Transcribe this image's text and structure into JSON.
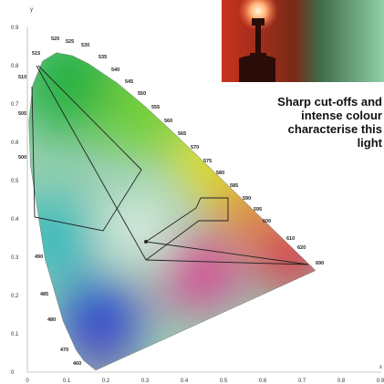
{
  "axis": {
    "x_label": "x",
    "y_label": "y",
    "x_ticks": [
      "0",
      "0.1",
      "0.2",
      "0.3",
      "0.4",
      "0.5",
      "0.6",
      "0.7",
      "0.8",
      "0.9"
    ],
    "y_ticks": [
      "0",
      "0.1",
      "0.2",
      "0.3",
      "0.4",
      "0.5",
      "0.6",
      "0.7",
      "0.8",
      "0.9"
    ]
  },
  "wavelengths": [
    "515",
    "520",
    "525",
    "530",
    "535",
    "540",
    "545",
    "550",
    "555",
    "560",
    "565",
    "570",
    "575",
    "580",
    "585",
    "590",
    "595",
    "600",
    "610",
    "620",
    "690",
    "510",
    "505",
    "500",
    "490",
    "485",
    "480",
    "470",
    "460"
  ],
  "caption": [
    "Sharp cut-offs and",
    "intense colour",
    "characterise this",
    "light"
  ]
}
